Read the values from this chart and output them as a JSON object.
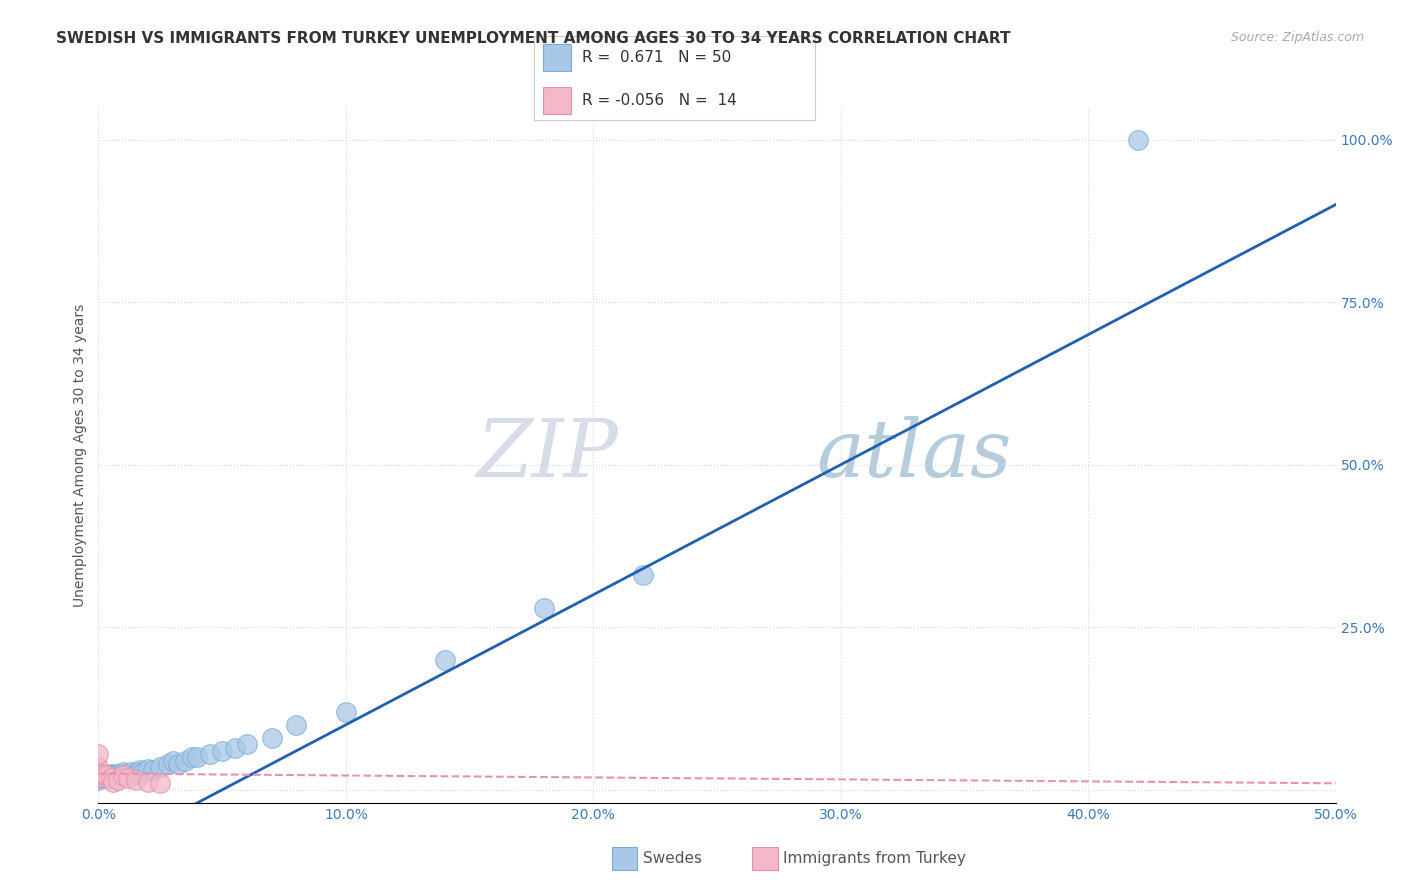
{
  "title": "SWEDISH VS IMMIGRANTS FROM TURKEY UNEMPLOYMENT AMONG AGES 30 TO 34 YEARS CORRELATION CHART",
  "source": "Source: ZipAtlas.com",
  "ylabel": "Unemployment Among Ages 30 to 34 years",
  "xlim": [
    0,
    0.5
  ],
  "ylim": [
    -0.02,
    1.05
  ],
  "xticks": [
    0.0,
    0.1,
    0.2,
    0.3,
    0.4,
    0.5
  ],
  "yticks": [
    0.0,
    0.25,
    0.5,
    0.75,
    1.0
  ],
  "xticklabels": [
    "0.0%",
    "10.0%",
    "20.0%",
    "30.0%",
    "40.0%",
    "50.0%"
  ],
  "yticklabels": [
    "",
    "25.0%",
    "50.0%",
    "75.0%",
    "100.0%"
  ],
  "watermark_zip": "ZIP",
  "watermark_atlas": "atlas",
  "blue_color": "#a8c8e8",
  "blue_edge_color": "#7aadd4",
  "pink_color": "#f4b8c8",
  "pink_edge_color": "#e090a8",
  "line_blue_color": "#2060b0",
  "line_pink_color": "#e890b0",
  "grid_color": "#d8d8d8",
  "swedes_x": [
    0.0,
    0.0,
    0.0,
    0.0,
    0.0,
    0.0,
    0.0,
    0.0,
    0.002,
    0.003,
    0.004,
    0.005,
    0.005,
    0.005,
    0.006,
    0.006,
    0.007,
    0.007,
    0.008,
    0.008,
    0.009,
    0.01,
    0.01,
    0.011,
    0.012,
    0.013,
    0.015,
    0.016,
    0.017,
    0.018,
    0.02,
    0.022,
    0.025,
    0.028,
    0.03,
    0.032,
    0.035,
    0.038,
    0.04,
    0.045,
    0.05,
    0.055,
    0.06,
    0.07,
    0.08,
    0.1,
    0.14,
    0.18,
    0.22,
    0.42
  ],
  "swedes_y": [
    0.02,
    0.022,
    0.018,
    0.025,
    0.015,
    0.02,
    0.022,
    0.018,
    0.02,
    0.018,
    0.022,
    0.02,
    0.022,
    0.025,
    0.022,
    0.018,
    0.025,
    0.022,
    0.022,
    0.025,
    0.022,
    0.025,
    0.028,
    0.022,
    0.025,
    0.028,
    0.025,
    0.028,
    0.03,
    0.028,
    0.032,
    0.03,
    0.035,
    0.04,
    0.045,
    0.04,
    0.045,
    0.05,
    0.05,
    0.055,
    0.06,
    0.065,
    0.07,
    0.08,
    0.1,
    0.12,
    0.2,
    0.28,
    0.33,
    1.0
  ],
  "turkey_x": [
    0.0,
    0.0,
    0.0,
    0.0,
    0.002,
    0.003,
    0.005,
    0.006,
    0.008,
    0.01,
    0.012,
    0.015,
    0.02,
    0.025
  ],
  "turkey_y": [
    0.035,
    0.055,
    0.02,
    0.025,
    0.025,
    0.022,
    0.018,
    0.012,
    0.015,
    0.022,
    0.018,
    0.015,
    0.012,
    0.01
  ],
  "background_color": "#ffffff",
  "title_fontsize": 11,
  "axis_label_fontsize": 10,
  "tick_fontsize": 10,
  "legend_r_blue": "0.671",
  "legend_n_blue": "50",
  "legend_r_pink": "-0.056",
  "legend_n_pink": "14"
}
